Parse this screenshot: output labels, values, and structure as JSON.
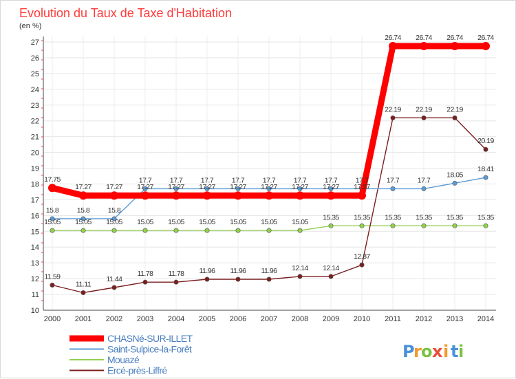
{
  "chart_data": {
    "type": "line",
    "title": "Evolution du Taux de Taxe d'Habitation",
    "ylabel": "(en %)",
    "xlabel": "",
    "x": [
      "2000",
      "2001",
      "2002",
      "2003",
      "2004",
      "2005",
      "2006",
      "2007",
      "2008",
      "2009",
      "2010",
      "2011",
      "2012",
      "2013",
      "2014"
    ],
    "ylim": [
      10,
      27
    ],
    "yticks": [
      10,
      11,
      12,
      13,
      14,
      15,
      16,
      17,
      18,
      19,
      20,
      21,
      22,
      23,
      24,
      25,
      26,
      27
    ],
    "grid": true,
    "legend_position": "bottom-left",
    "series": [
      {
        "name": "CHASNé-SUR-ILLET",
        "color": "#ff0000",
        "values": [
          17.75,
          17.27,
          17.27,
          17.27,
          17.27,
          17.27,
          17.27,
          17.27,
          17.27,
          17.27,
          17.27,
          26.74,
          26.74,
          26.74,
          26.74
        ],
        "labels": [
          "17.75",
          "17.27",
          "17.27",
          "17.27",
          "17.27",
          "17.27",
          "17.27",
          "17.27",
          "17.27",
          "17.27",
          "17.27",
          "26.74",
          "26.74",
          "26.74",
          "26.74"
        ]
      },
      {
        "name": "Saint-Sulpice-la-Forêt",
        "color": "#5b9bd5",
        "values": [
          15.8,
          15.8,
          15.8,
          17.7,
          17.7,
          17.7,
          17.7,
          17.7,
          17.7,
          17.7,
          17.7,
          17.7,
          17.7,
          18.05,
          18.41
        ],
        "labels": [
          "15.8",
          "15.8",
          "15.8",
          "17.7",
          "17.7",
          "17.7",
          "17.7",
          "17.7",
          "17.7",
          "17.7",
          "17.7",
          "17.7",
          "17.7",
          "18.05",
          "18.41"
        ]
      },
      {
        "name": "Mouazé",
        "color": "#92d050",
        "values": [
          15.05,
          15.05,
          15.05,
          15.05,
          15.05,
          15.05,
          15.05,
          15.05,
          15.05,
          15.35,
          15.35,
          15.35,
          15.35,
          15.35,
          15.35
        ],
        "labels": [
          "15.05",
          "15.05",
          "15.05",
          "15.05",
          "15.05",
          "15.05",
          "15.05",
          "15.05",
          "15.05",
          "15.35",
          "15.35",
          "15.35",
          "15.35",
          "15.35",
          "15.35"
        ]
      },
      {
        "name": "Ercé-près-Liffré",
        "color": "#7b1e1e",
        "values": [
          11.59,
          11.11,
          11.44,
          11.78,
          11.78,
          11.96,
          11.96,
          11.96,
          12.14,
          12.14,
          12.87,
          22.19,
          22.19,
          22.19,
          20.19
        ],
        "labels": [
          "11.59",
          "11.11",
          "11.44",
          "11.78",
          "11.78",
          "11.96",
          "11.96",
          "11.96",
          "12.14",
          "12.14",
          "12.87",
          "22.19",
          "22.19",
          "22.19",
          "20.19"
        ]
      }
    ]
  },
  "brand": {
    "letters": [
      "P",
      "r",
      "o",
      "x",
      "i",
      "t",
      "i"
    ],
    "colors": [
      "#4a90d9",
      "#f29a2e",
      "#7cc242",
      "#e94e3c",
      "#f29a2e",
      "#4a90d9",
      "#7cc242"
    ]
  }
}
